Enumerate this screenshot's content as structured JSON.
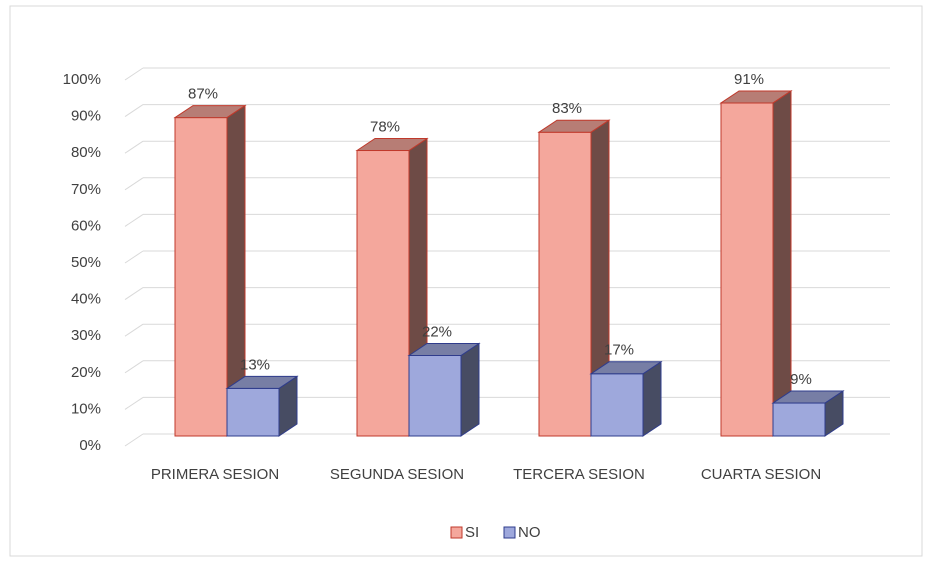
{
  "chart_data": {
    "type": "bar3d",
    "categories": [
      "PRIMERA SESION",
      "SEGUNDA SESION",
      "TERCERA SESION",
      "CUARTA SESION"
    ],
    "series": [
      {
        "name": "SI",
        "color": "#f4a79c",
        "values": [
          87,
          78,
          83,
          91
        ],
        "value_labels": [
          "87%",
          "78%",
          "83%",
          "91%"
        ]
      },
      {
        "name": "NO",
        "color": "#9ea8dc",
        "values": [
          13,
          22,
          17,
          9
        ],
        "value_labels": [
          "13%",
          "22%",
          "17%",
          "9%"
        ]
      }
    ],
    "ylim": [
      0,
      100
    ],
    "yticks": [
      {
        "value": 0,
        "label": "0%"
      },
      {
        "value": 10,
        "label": "10%"
      },
      {
        "value": 20,
        "label": "20%"
      },
      {
        "value": 30,
        "label": "30%"
      },
      {
        "value": 40,
        "label": "40%"
      },
      {
        "value": 50,
        "label": "50%"
      },
      {
        "value": 60,
        "label": "60%"
      },
      {
        "value": 70,
        "label": "70%"
      },
      {
        "value": 80,
        "label": "80%"
      },
      {
        "value": 90,
        "label": "90%"
      },
      {
        "value": 100,
        "label": "100%"
      }
    ],
    "grid": true,
    "legend": "bottom"
  }
}
